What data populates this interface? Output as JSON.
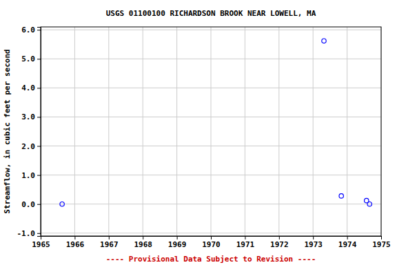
{
  "chart_data": {
    "type": "scatter",
    "title": "USGS 01100100 RICHARDSON BROOK NEAR LOWELL, MA",
    "y_label": "Streamflow, in cubic feet per second",
    "annotations": [
      "---- Provisional Data Subject to Revision ----"
    ],
    "x": [
      1965.63,
      1973.32,
      1973.83,
      1974.57,
      1974.66
    ],
    "values": [
      0.0,
      5.62,
      0.28,
      0.12,
      0.0
    ],
    "color": "#0000ff",
    "marker": "circle",
    "xlim": [
      1965,
      1975
    ],
    "xticks": [
      1965,
      1966,
      1967,
      1968,
      1969,
      1970,
      1971,
      1972,
      1973,
      1974,
      1975
    ],
    "ylim": [
      -1.1,
      6.1
    ],
    "yticks": [
      {
        "value": -1,
        "label": "-1.0"
      },
      {
        "value": 0,
        "label": "0.0"
      },
      {
        "value": 1,
        "label": "1.0"
      },
      {
        "value": 2,
        "label": "2.0"
      },
      {
        "value": 3,
        "label": "3.0"
      },
      {
        "value": 4,
        "label": "4.0"
      },
      {
        "value": 5,
        "label": "5.0"
      },
      {
        "value": 6,
        "label": "6.0"
      }
    ],
    "grid": true
  }
}
